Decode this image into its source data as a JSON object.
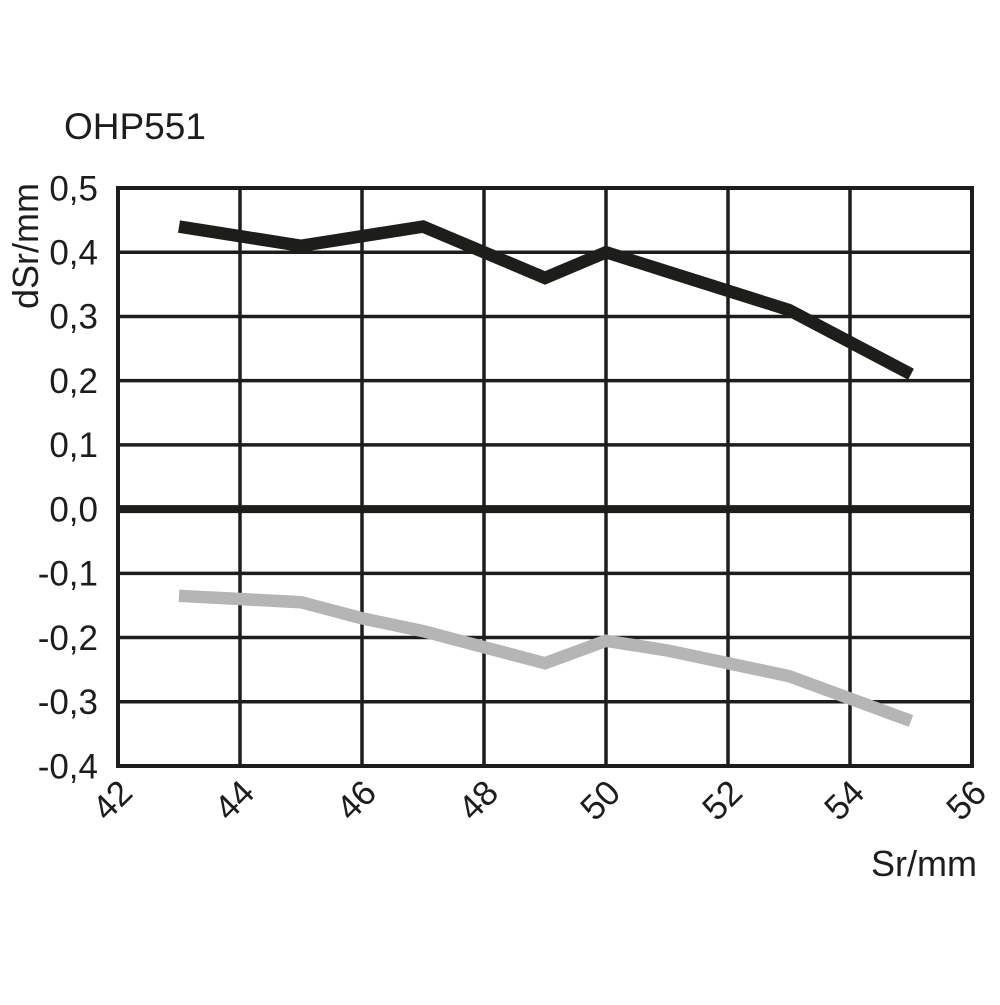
{
  "page": {
    "background": "#ffffff"
  },
  "chart_data": {
    "type": "line",
    "title": "OHP551",
    "xlabel": "Sr/mm",
    "ylabel": "dSr/mm",
    "xlim": [
      42,
      56
    ],
    "ylim": [
      -0.4,
      0.5
    ],
    "grid": true,
    "legend_position": "none",
    "zero_line_value": 0,
    "x_ticks": {
      "values": [
        42,
        44,
        46,
        48,
        50,
        52,
        54,
        56
      ],
      "labels": [
        "42",
        "44",
        "46",
        "48",
        "50",
        "52",
        "54",
        "56"
      ]
    },
    "y_ticks": {
      "values": [
        0.5,
        0.4,
        0.3,
        0.2,
        0.1,
        0,
        -0.1,
        -0.2,
        -0.3,
        -0.4
      ],
      "labels": [
        "0,5",
        "0,4",
        "0,3",
        "0,2",
        "0,1",
        "0,0",
        "-0,1",
        "-0,2",
        "-0,3",
        "-0,4"
      ]
    },
    "colors": {
      "axis": "#1d1d1b",
      "series_upper": "#1d1d1b",
      "series_lower": "#b5b5b5"
    },
    "series": [
      {
        "name": "upper",
        "color": "#1d1d1b",
        "x": [
          43,
          44,
          45,
          46,
          47,
          48,
          49,
          50,
          51,
          52,
          53,
          54,
          55
        ],
        "y": [
          0.44,
          0.425,
          0.41,
          0.425,
          0.44,
          0.4,
          0.36,
          0.4,
          0.37,
          0.34,
          0.31,
          0.26,
          0.21
        ]
      },
      {
        "name": "lower",
        "color": "#b5b5b5",
        "x": [
          43,
          44,
          45,
          46,
          47,
          48,
          49,
          50,
          51,
          52,
          53,
          54,
          55
        ],
        "y": [
          -0.135,
          -0.14,
          -0.145,
          -0.17,
          -0.19,
          -0.215,
          -0.24,
          -0.205,
          -0.22,
          -0.24,
          -0.26,
          -0.295,
          -0.33
        ]
      }
    ]
  }
}
